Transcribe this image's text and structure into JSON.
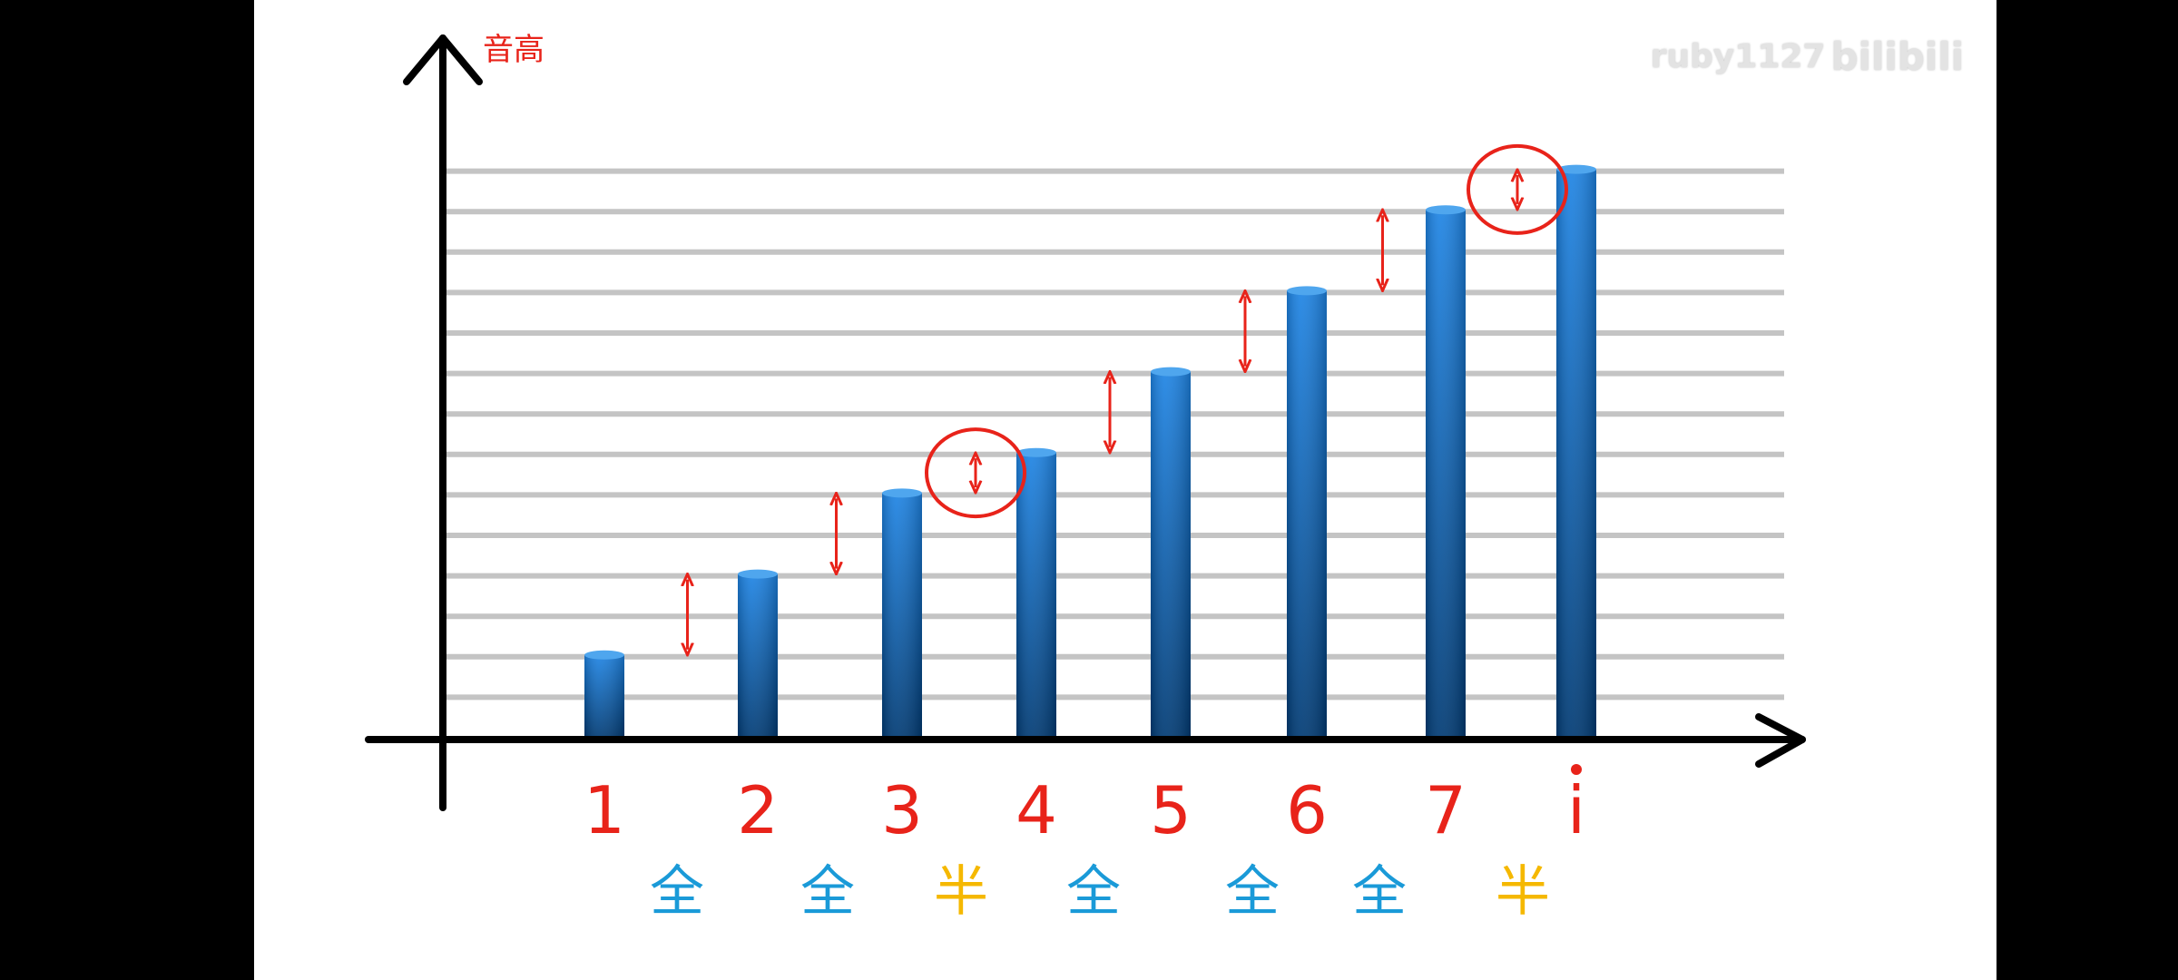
{
  "watermark": {
    "user": "ruby1127",
    "brand": "bilibili"
  },
  "colors": {
    "background": "#ffffff",
    "side_bars": "#000000",
    "bar_top": "#1e84e4",
    "bar_bottom": "#003a73",
    "axis": "#000000",
    "gridline": "#c4c4c4",
    "note_label": "#e8231a",
    "arrow": "#e8231a",
    "whole_step": "#1a9ad8",
    "half_step": "#f5b800"
  },
  "chart_data": {
    "type": "bar",
    "ylabel": "音高",
    "xlabel": "",
    "categories": [
      "1",
      "2",
      "3",
      "4",
      "5",
      "6",
      "7",
      "i"
    ],
    "values": [
      2,
      4,
      6,
      7,
      9,
      11,
      13,
      14
    ],
    "ylim": [
      0,
      14
    ],
    "gridlines": 14,
    "legend": "none",
    "step_labels": [
      "全",
      "全",
      "半",
      "全",
      "全",
      "全",
      "半"
    ],
    "step_kinds": [
      "whole",
      "whole",
      "half",
      "whole",
      "whole",
      "whole",
      "half"
    ],
    "highlighted_steps": [
      2,
      6
    ],
    "top_dot_on_last_category": true
  }
}
